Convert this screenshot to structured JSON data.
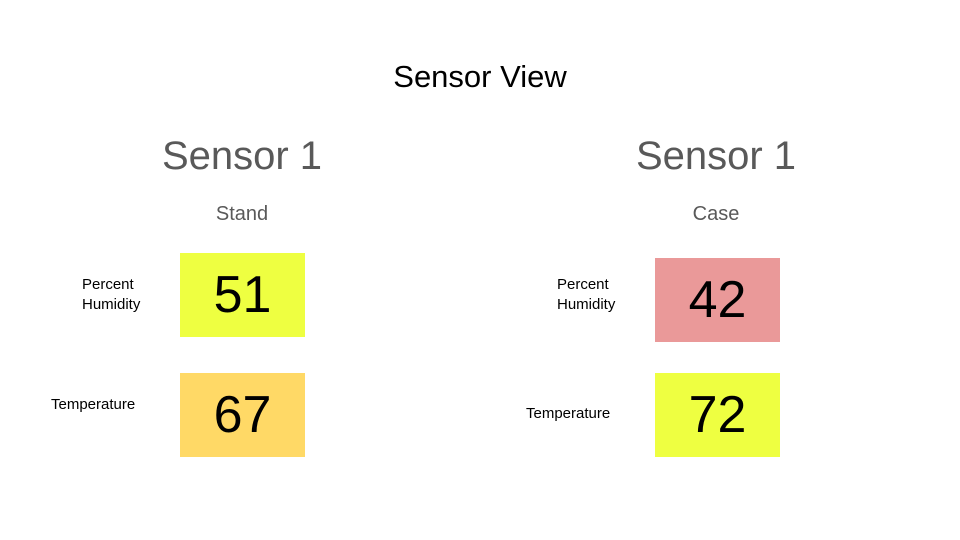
{
  "title": "Sensor View",
  "panels": [
    {
      "sensor_name": "Sensor 1",
      "location": "Stand",
      "humidity": {
        "label_line1": "Percent",
        "label_line2": "Humidity",
        "value": "51",
        "color": "#eeff41"
      },
      "temperature": {
        "label": "Temperature",
        "value": "67",
        "color": "#ffd966"
      }
    },
    {
      "sensor_name": "Sensor 1",
      "location": "Case",
      "humidity": {
        "label_line1": "Percent",
        "label_line2": "Humidity",
        "value": "42",
        "color": "#ea9999"
      },
      "temperature": {
        "label": "Temperature",
        "value": "72",
        "color": "#eeff41"
      }
    }
  ]
}
